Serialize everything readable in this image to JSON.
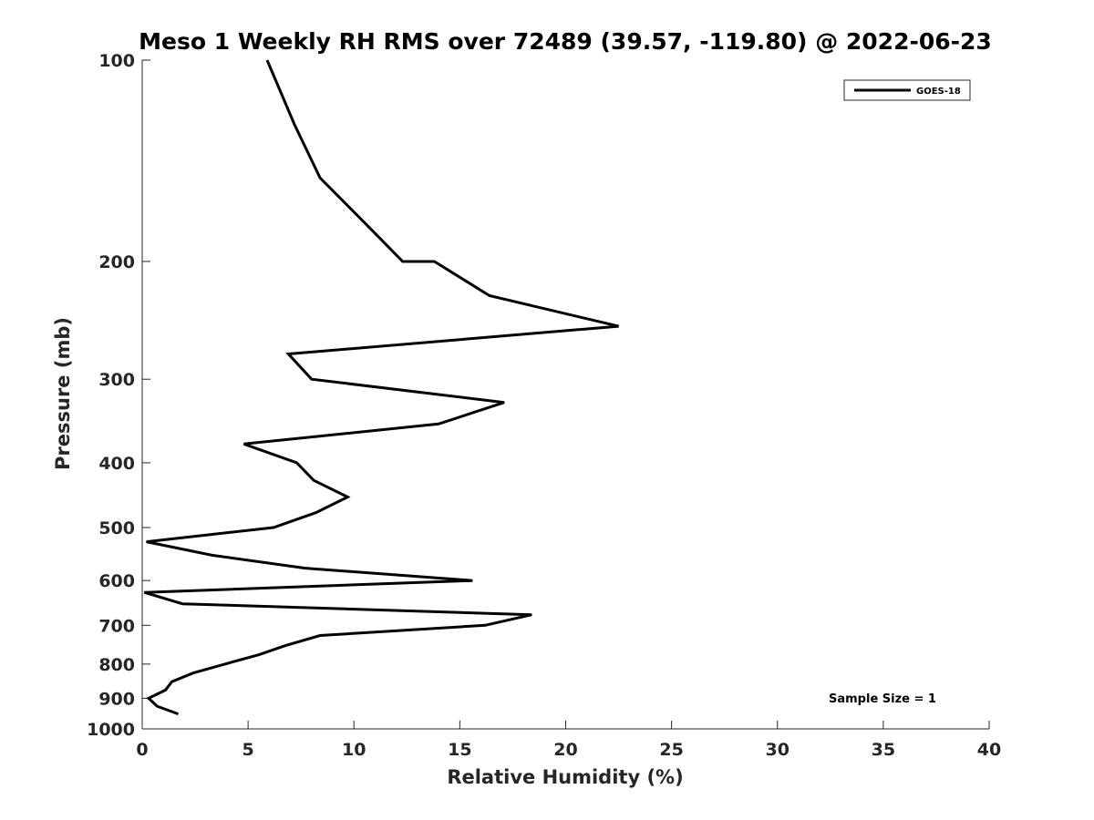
{
  "chart_data": {
    "type": "line",
    "title": "Meso 1 Weekly RH RMS over 72489 (39.57, -119.80) @ 2022-06-23",
    "xlabel": "Relative Humidity (%)",
    "ylabel": "Pressure (mb)",
    "xlim": [
      0,
      40
    ],
    "ylim": [
      100,
      1000
    ],
    "y_scale": "log",
    "y_reversed": true,
    "x_ticks": [
      0,
      5,
      10,
      15,
      20,
      25,
      30,
      35,
      40
    ],
    "y_ticks": [
      100,
      200,
      300,
      400,
      500,
      600,
      700,
      800,
      900,
      1000
    ],
    "grid": false,
    "legend_position": "top-right",
    "annotation": "Sample Size = 1",
    "series": [
      {
        "name": "GOES-18",
        "color": "#000000",
        "points": [
          {
            "x": 5.9,
            "y": 100
          },
          {
            "x": 7.2,
            "y": 125
          },
          {
            "x": 8.4,
            "y": 150
          },
          {
            "x": 10.5,
            "y": 175
          },
          {
            "x": 12.3,
            "y": 200
          },
          {
            "x": 13.8,
            "y": 200
          },
          {
            "x": 16.4,
            "y": 225
          },
          {
            "x": 22.5,
            "y": 250
          },
          {
            "x": 6.9,
            "y": 275
          },
          {
            "x": 8.0,
            "y": 300
          },
          {
            "x": 17.1,
            "y": 325
          },
          {
            "x": 14.0,
            "y": 350
          },
          {
            "x": 4.8,
            "y": 375
          },
          {
            "x": 7.3,
            "y": 400
          },
          {
            "x": 8.1,
            "y": 425
          },
          {
            "x": 9.7,
            "y": 450
          },
          {
            "x": 8.2,
            "y": 475
          },
          {
            "x": 6.2,
            "y": 500
          },
          {
            "x": 0.2,
            "y": 525
          },
          {
            "x": 3.3,
            "y": 550
          },
          {
            "x": 7.7,
            "y": 575
          },
          {
            "x": 15.6,
            "y": 600
          },
          {
            "x": 0.1,
            "y": 625
          },
          {
            "x": 1.9,
            "y": 650
          },
          {
            "x": 18.4,
            "y": 675
          },
          {
            "x": 16.2,
            "y": 700
          },
          {
            "x": 8.4,
            "y": 725
          },
          {
            "x": 6.8,
            "y": 750
          },
          {
            "x": 5.5,
            "y": 775
          },
          {
            "x": 3.9,
            "y": 800
          },
          {
            "x": 2.4,
            "y": 825
          },
          {
            "x": 1.4,
            "y": 850
          },
          {
            "x": 1.1,
            "y": 875
          },
          {
            "x": 0.3,
            "y": 900
          },
          {
            "x": 0.7,
            "y": 925
          },
          {
            "x": 1.7,
            "y": 950
          }
        ]
      }
    ]
  }
}
